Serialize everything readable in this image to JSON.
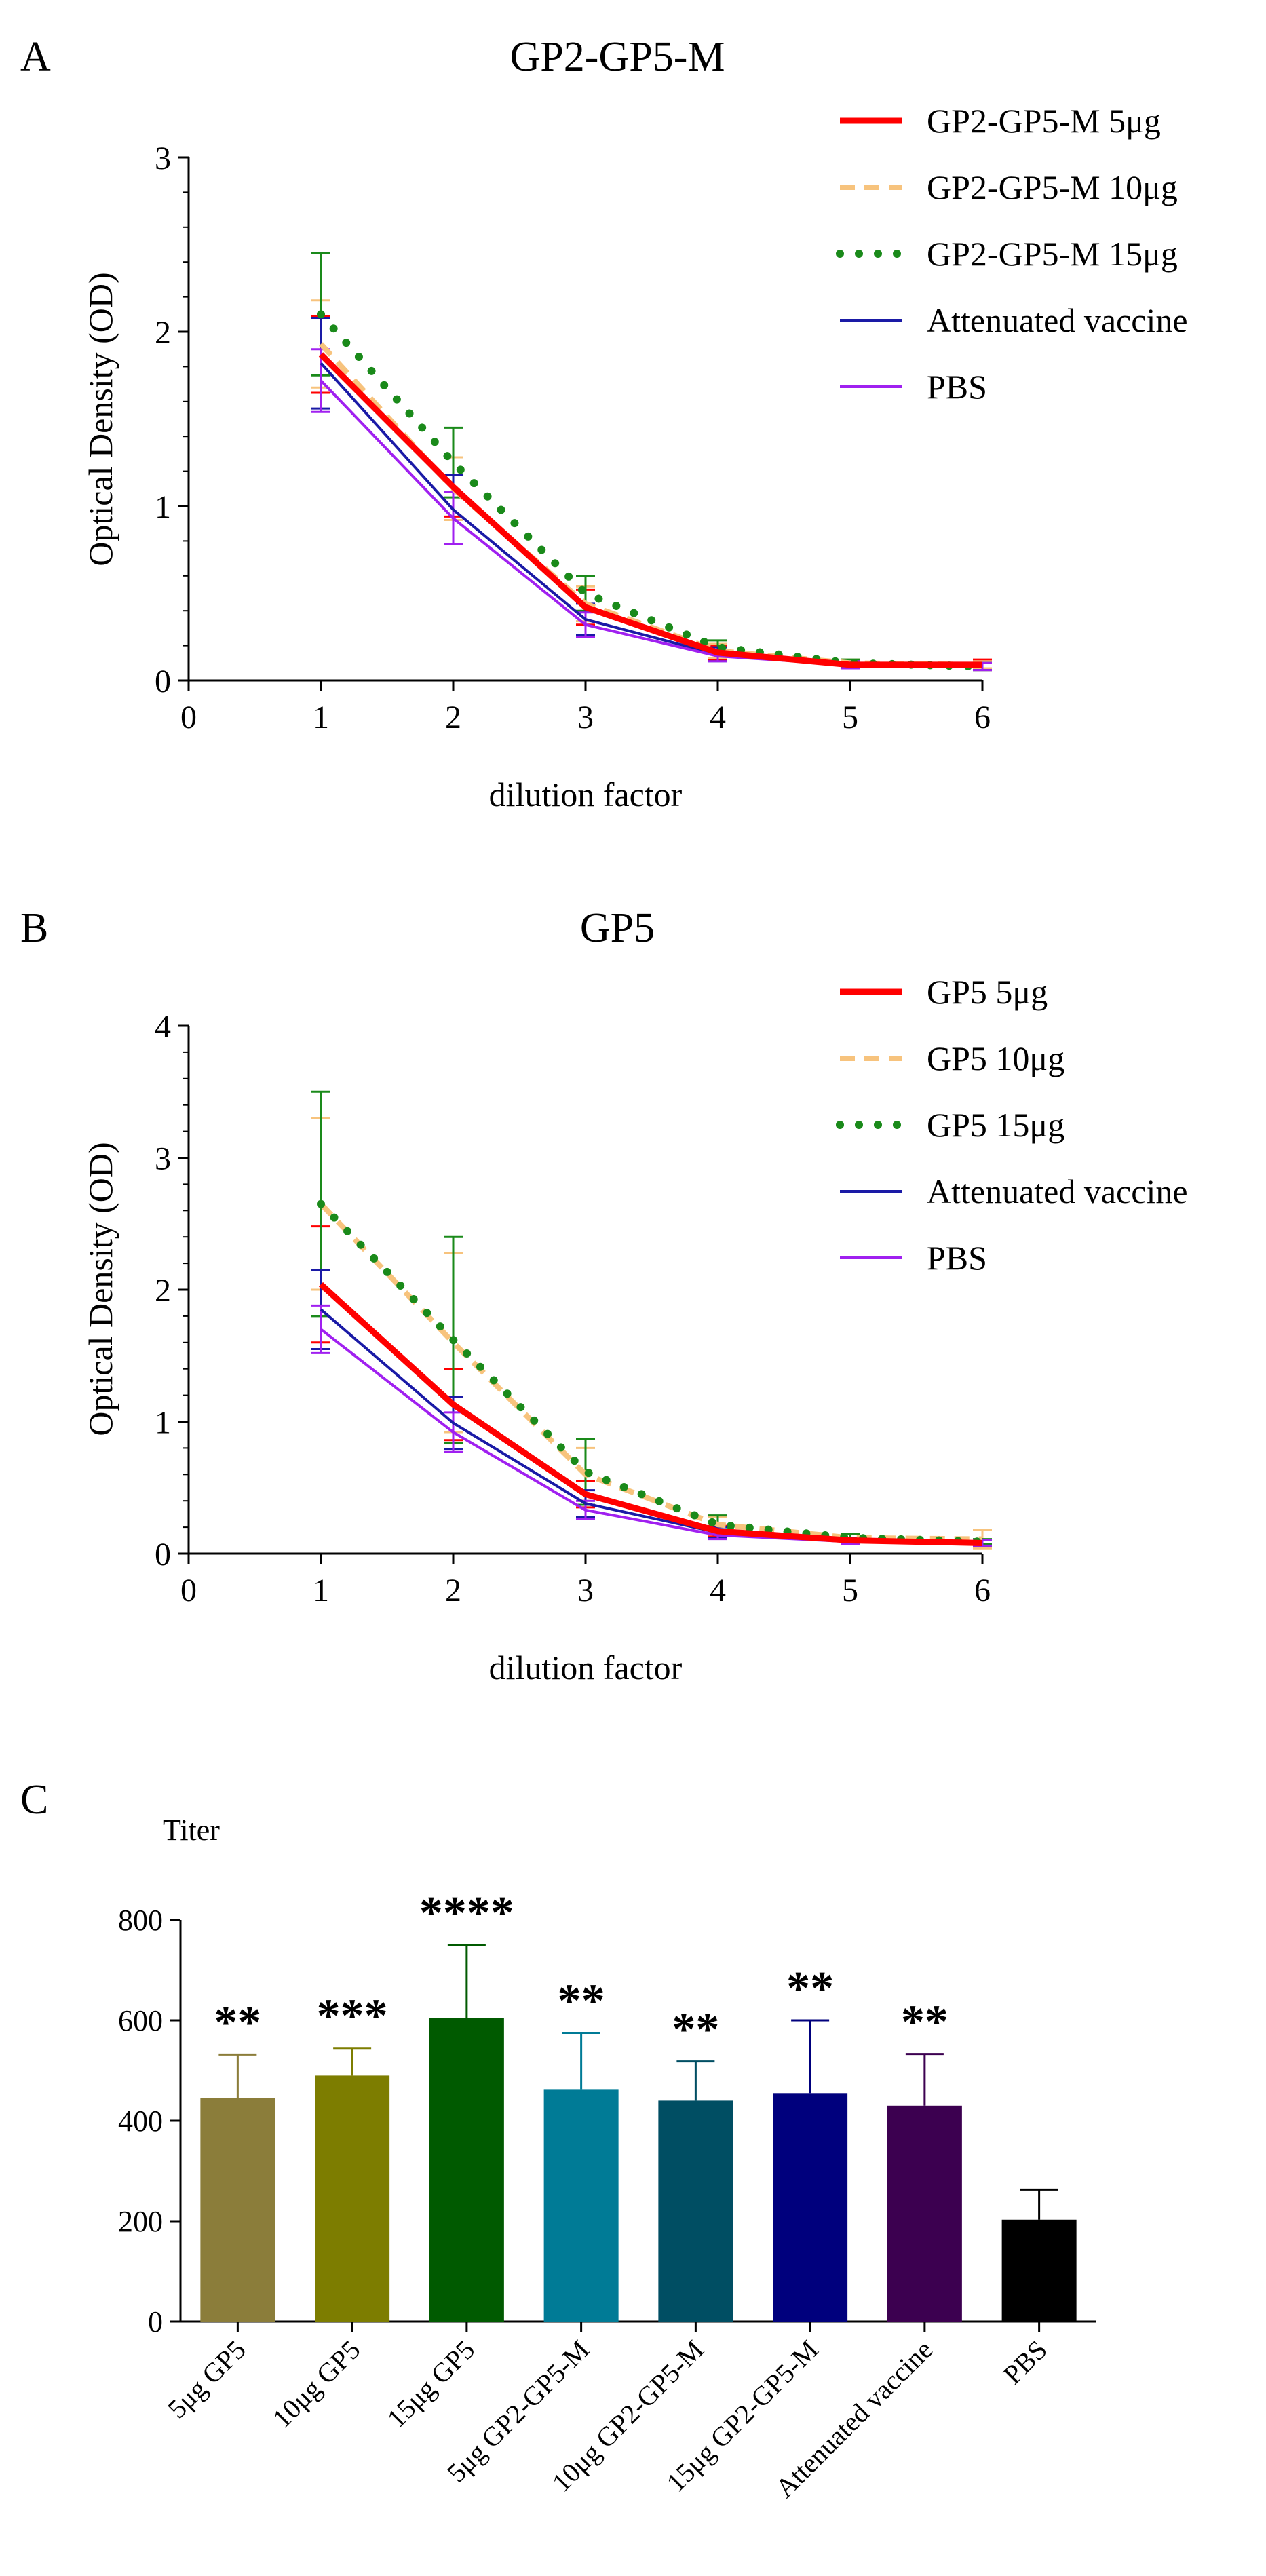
{
  "chart_data": [
    {
      "panel_label": "A",
      "type": "line",
      "title": "GP2-GP5-M",
      "xlabel": "dilution factor",
      "ylabel": "Optical Density (OD)",
      "xlim": [
        0,
        6
      ],
      "ylim": [
        0,
        3
      ],
      "xticks": [
        "0",
        "1",
        "2",
        "3",
        "4",
        "5",
        "6"
      ],
      "yticks": [
        "0",
        "1",
        "2",
        "3"
      ],
      "legend_position": "top-right",
      "x": [
        1,
        2,
        3,
        4,
        5,
        6
      ],
      "series": [
        {
          "name": "GP2-GP5-M 5μg",
          "style": "solid-thick",
          "color": "#ff0000",
          "values": [
            1.87,
            1.11,
            0.42,
            0.16,
            0.09,
            0.09
          ],
          "errors": [
            0.22,
            0.17,
            0.1,
            0.04,
            0.02,
            0.03
          ]
        },
        {
          "name": "GP2-GP5-M 10μg",
          "style": "dashed",
          "color": "#f7c37d",
          "values": [
            1.93,
            1.1,
            0.44,
            0.17,
            0.1,
            0.09
          ],
          "errors": [
            0.25,
            0.18,
            0.1,
            0.04,
            0.02,
            0.02
          ]
        },
        {
          "name": "GP2-GP5-M 15μg",
          "style": "dotted",
          "color": "#1a8a1a",
          "values": [
            2.1,
            1.25,
            0.5,
            0.19,
            0.1,
            0.08
          ],
          "errors": [
            0.35,
            0.2,
            0.1,
            0.04,
            0.02,
            0.02
          ]
        },
        {
          "name": "Attenuated vaccine",
          "style": "solid-thin",
          "color": "#1a1aa6",
          "values": [
            1.82,
            0.98,
            0.35,
            0.15,
            0.09,
            0.08
          ],
          "errors": [
            0.26,
            0.2,
            0.09,
            0.04,
            0.02,
            0.02
          ]
        },
        {
          "name": "PBS",
          "style": "solid-thin",
          "color": "#a020f0",
          "values": [
            1.72,
            0.93,
            0.32,
            0.14,
            0.09,
            0.08
          ],
          "errors": [
            0.18,
            0.15,
            0.07,
            0.03,
            0.02,
            0.02
          ]
        }
      ]
    },
    {
      "panel_label": "B",
      "type": "line",
      "title": "GP5",
      "xlabel": "dilution factor",
      "ylabel": "Optical Density (OD)",
      "xlim": [
        0,
        6
      ],
      "ylim": [
        0,
        4
      ],
      "xticks": [
        "0",
        "1",
        "2",
        "3",
        "4",
        "5",
        "6"
      ],
      "yticks": [
        "0",
        "1",
        "2",
        "3",
        "4"
      ],
      "legend_position": "top-right",
      "x": [
        1,
        2,
        3,
        4,
        5,
        6
      ],
      "series": [
        {
          "name": "GP5 5μg",
          "style": "solid-thick",
          "color": "#ff0000",
          "values": [
            2.04,
            1.13,
            0.45,
            0.17,
            0.1,
            0.08
          ],
          "errors": [
            0.44,
            0.27,
            0.1,
            0.04,
            0.02,
            0.02
          ]
        },
        {
          "name": "GP5 10μg",
          "style": "dashed",
          "color": "#f7c37d",
          "values": [
            2.65,
            1.6,
            0.6,
            0.22,
            0.12,
            0.11
          ],
          "errors": [
            0.65,
            0.68,
            0.2,
            0.06,
            0.03,
            0.07
          ]
        },
        {
          "name": "GP5 15μg",
          "style": "dotted",
          "color": "#1a8a1a",
          "values": [
            2.65,
            1.62,
            0.62,
            0.22,
            0.12,
            0.09
          ],
          "errors": [
            0.85,
            0.78,
            0.25,
            0.07,
            0.03,
            0.02
          ]
        },
        {
          "name": "Attenuated vaccine",
          "style": "solid-thin",
          "color": "#1a1aa6",
          "values": [
            1.85,
            0.99,
            0.38,
            0.16,
            0.1,
            0.08
          ],
          "errors": [
            0.3,
            0.2,
            0.1,
            0.04,
            0.02,
            0.02
          ]
        },
        {
          "name": "PBS",
          "style": "solid-thin",
          "color": "#a020f0",
          "values": [
            1.7,
            0.92,
            0.33,
            0.14,
            0.09,
            0.08
          ],
          "errors": [
            0.18,
            0.15,
            0.07,
            0.03,
            0.02,
            0.02
          ]
        }
      ]
    },
    {
      "panel_label": "C",
      "type": "bar",
      "ylabel": "Titer",
      "ylim": [
        0,
        800
      ],
      "yticks": [
        "0",
        "200",
        "400",
        "600",
        "800"
      ],
      "categories": [
        "5μg GP5",
        "10μg GP5",
        "15μg GP5",
        "5μg GP2-GP5-M",
        "10μg GP2-GP5-M",
        "15μg GP2-GP5-M",
        "Attenuated vaccine",
        "PBS"
      ],
      "values": [
        445,
        490,
        605,
        463,
        440,
        455,
        430,
        203
      ],
      "errors": [
        87,
        55,
        145,
        112,
        78,
        145,
        103,
        60
      ],
      "significance": [
        "**",
        "***",
        "****",
        "**",
        "**",
        "**",
        "**",
        ""
      ],
      "colors": [
        "#8b7d3a",
        "#7d7d00",
        "#005a00",
        "#007b96",
        "#004e63",
        "#00007d",
        "#3c0050",
        "#000000"
      ]
    }
  ]
}
